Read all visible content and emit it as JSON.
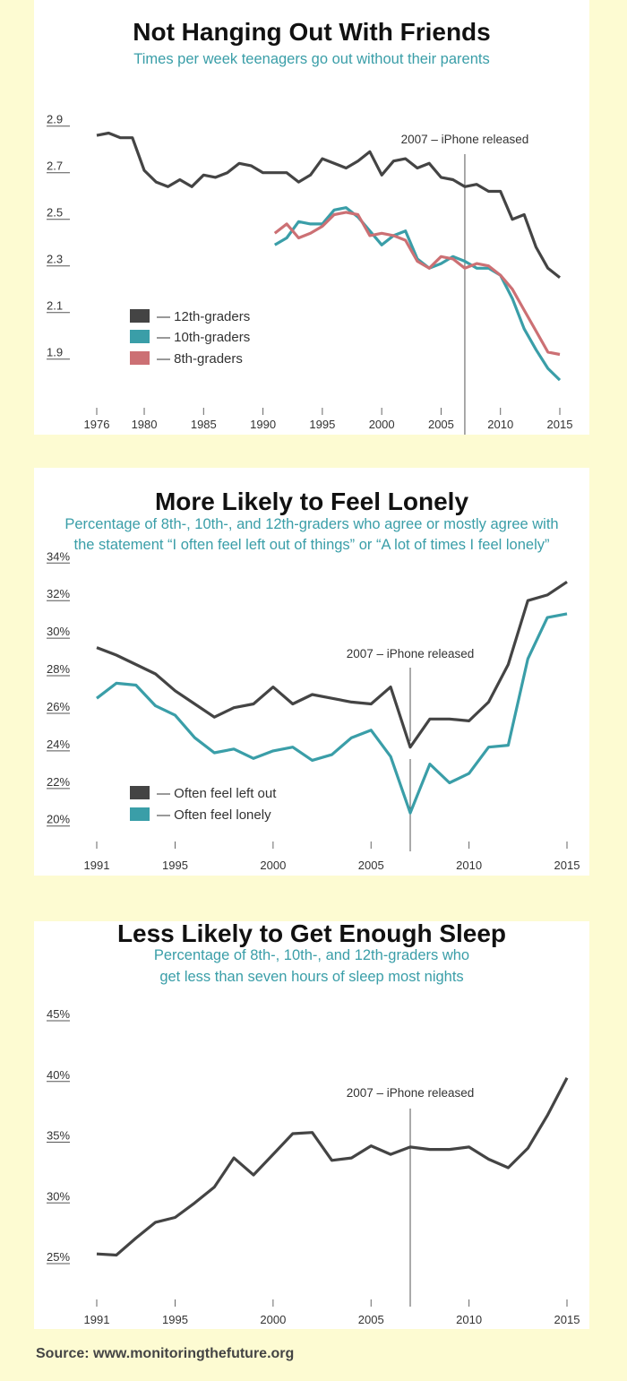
{
  "colors": {
    "dark": "#444444",
    "teal": "#3a9ea8",
    "pink": "#cc7074",
    "background": "#fdfbd2",
    "panel": "#ffffff"
  },
  "source": "Source: www.monitoringthefuture.org",
  "chart_data": [
    {
      "type": "line",
      "title": "Not Hanging Out With Friends",
      "subtitle": [
        "Times per week teenagers go out without their parents"
      ],
      "yticks": [
        "2.9",
        "2.7",
        "2.5",
        "2.3",
        "2.1",
        "1.9"
      ],
      "ytick_values": [
        2.9,
        2.7,
        2.5,
        2.3,
        2.1,
        1.9
      ],
      "xticks": [
        1976,
        1980,
        1985,
        1990,
        1995,
        2000,
        2005,
        2010,
        2015
      ],
      "xlim": [
        1976,
        2015
      ],
      "annotation": {
        "x": 2007,
        "label": "2007 – iPhone released"
      },
      "legend_placement": "bottom-left",
      "series": [
        {
          "name": "— 12th-graders",
          "color": "#444444",
          "x_start": 1976,
          "values": [
            2.86,
            2.87,
            2.85,
            2.85,
            2.71,
            2.66,
            2.64,
            2.67,
            2.64,
            2.69,
            2.68,
            2.7,
            2.74,
            2.73,
            2.7,
            2.7,
            2.7,
            2.66,
            2.69,
            2.76,
            2.74,
            2.72,
            2.75,
            2.79,
            2.69,
            2.75,
            2.76,
            2.72,
            2.74,
            2.68,
            2.67,
            2.64,
            2.65,
            2.62,
            2.62,
            2.5,
            2.52,
            2.38,
            2.29,
            2.25
          ]
        },
        {
          "name": "— 10th-graders",
          "color": "#3a9ea8",
          "x_start": 1991,
          "values": [
            2.39,
            2.42,
            2.49,
            2.48,
            2.48,
            2.54,
            2.55,
            2.51,
            2.45,
            2.39,
            2.43,
            2.45,
            2.33,
            2.29,
            2.31,
            2.34,
            2.32,
            2.29,
            2.29,
            2.26,
            2.16,
            2.03,
            1.94,
            1.86,
            1.81
          ]
        },
        {
          "name": "— 8th-graders",
          "color": "#cc7074",
          "x_start": 1991,
          "values": [
            2.44,
            2.48,
            2.42,
            2.44,
            2.47,
            2.52,
            2.53,
            2.52,
            2.43,
            2.44,
            2.43,
            2.41,
            2.32,
            2.29,
            2.34,
            2.33,
            2.29,
            2.31,
            2.3,
            2.26,
            2.2,
            2.11,
            2.02,
            1.93,
            1.92
          ]
        }
      ]
    },
    {
      "type": "line",
      "title": "More Likely to Feel Lonely",
      "subtitle": [
        "Percentage of 8th-, 10th-, and 12th-graders who agree or mostly agree with",
        "the statement “I often feel left out of things” or “A lot of times I feel lonely”"
      ],
      "yticks": [
        "34%",
        "32%",
        "30%",
        "28%",
        "26%",
        "24%",
        "22%",
        "20%"
      ],
      "ytick_values": [
        34,
        32,
        30,
        28,
        26,
        24,
        22,
        20
      ],
      "xticks": [
        1991,
        1995,
        2000,
        2005,
        2010,
        2015
      ],
      "xlim": [
        1991,
        2015
      ],
      "annotation": {
        "x": 2007,
        "label": "2007 – iPhone released"
      },
      "legend_placement": "bottom-left",
      "series": [
        {
          "name": "— Often feel left out",
          "color": "#444444",
          "x_start": 1991,
          "values": [
            29.5,
            29.1,
            28.6,
            28.1,
            27.2,
            26.5,
            25.8,
            26.3,
            26.5,
            27.4,
            26.5,
            27.0,
            26.8,
            26.6,
            26.5,
            27.4,
            24.2,
            25.7,
            25.7,
            25.6,
            26.6,
            28.6,
            32.0,
            32.3,
            33.0
          ]
        },
        {
          "name": "— Often feel lonely",
          "color": "#3a9ea8",
          "x_start": 1991,
          "values": [
            26.8,
            27.6,
            27.5,
            26.4,
            25.9,
            24.7,
            23.9,
            24.1,
            23.6,
            24.0,
            24.2,
            23.5,
            23.8,
            24.7,
            25.1,
            23.7,
            20.7,
            23.3,
            22.3,
            22.8,
            24.2,
            24.3,
            28.9,
            31.1,
            31.3
          ]
        }
      ]
    },
    {
      "type": "line",
      "title": "Less Likely to Get Enough Sleep",
      "subtitle": [
        "Percentage of 8th-, 10th-, and 12th-graders who",
        "get less than seven hours of sleep most nights"
      ],
      "yticks": [
        "45%",
        "40%",
        "35%",
        "30%",
        "25%"
      ],
      "ytick_values": [
        45,
        40,
        35,
        30,
        25
      ],
      "xticks": [
        1991,
        1995,
        2000,
        2005,
        2010,
        2015
      ],
      "xlim": [
        1991,
        2015
      ],
      "annotation": {
        "x": 2007,
        "label": "2007 – iPhone released"
      },
      "series": [
        {
          "color": "#444444",
          "x_start": 1991,
          "values": [
            25.8,
            25.7,
            27.1,
            28.4,
            28.8,
            30.0,
            31.3,
            33.7,
            32.3,
            34.0,
            35.7,
            35.8,
            33.5,
            33.7,
            34.7,
            34.0,
            34.6,
            34.4,
            34.4,
            34.6,
            33.6,
            32.9,
            34.5,
            37.2,
            40.3
          ]
        }
      ]
    }
  ]
}
